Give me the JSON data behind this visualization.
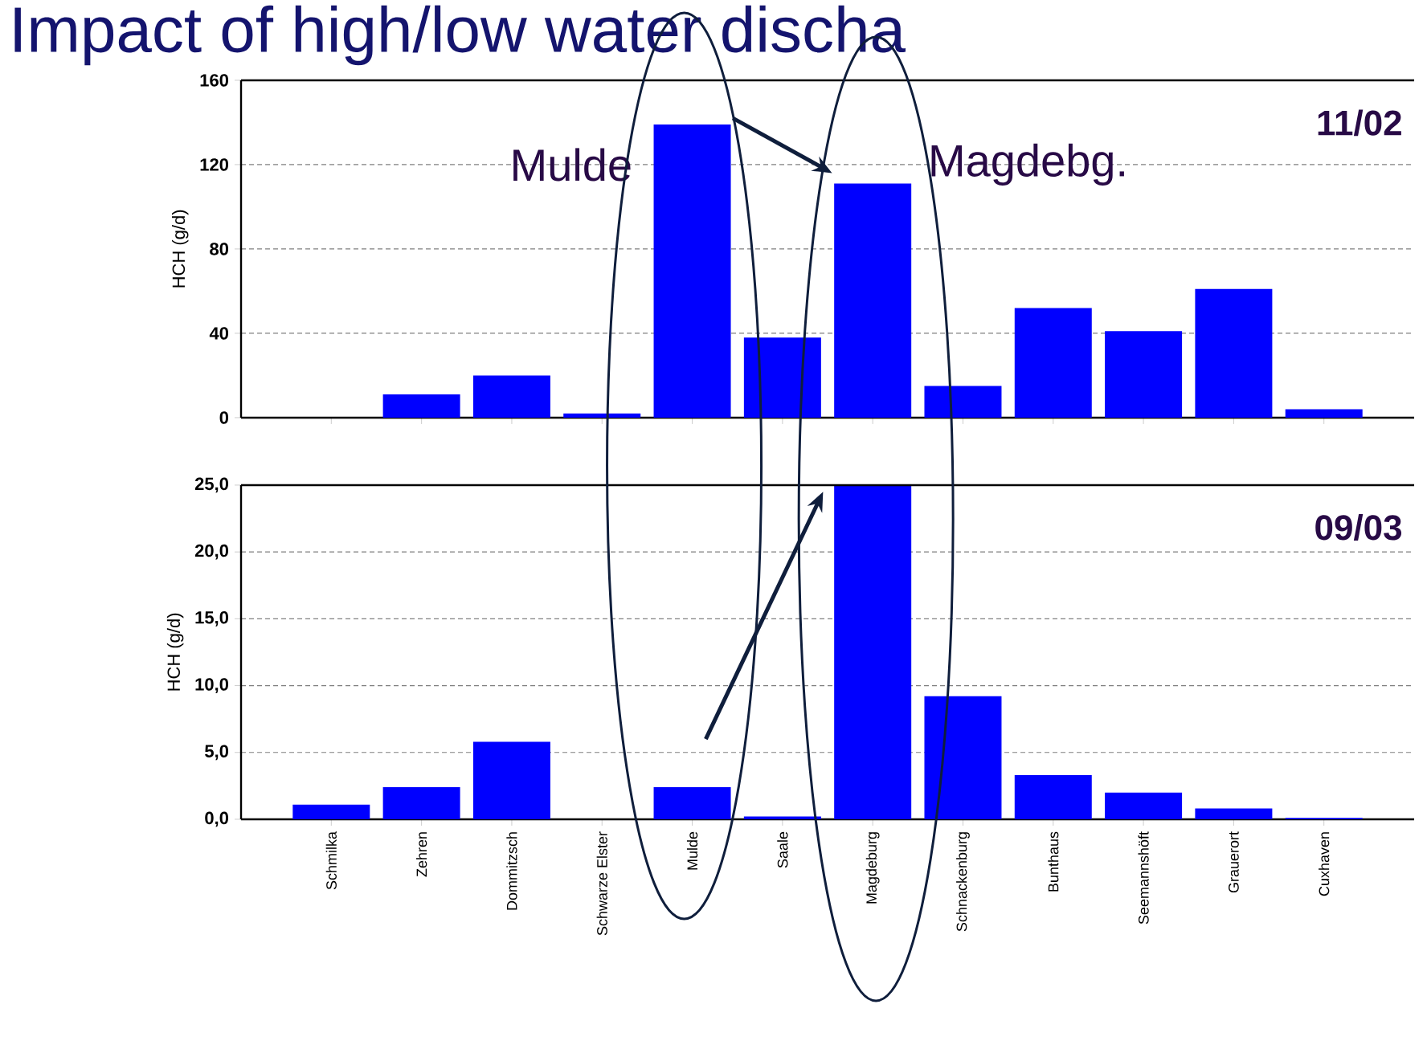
{
  "chart_data": [
    {
      "type": "bar",
      "title": "Impact of high/low water discha",
      "subtitle": "11/02",
      "ylabel": "HCH (g/d)",
      "color": "#0000ff",
      "grid": "y",
      "tick_labels": "y",
      "values": [
        0,
        11,
        20,
        2,
        139,
        38,
        111,
        15,
        52,
        41,
        61,
        4
      ],
      "ylim": [
        0,
        160
      ],
      "yticks": [
        0,
        40,
        80,
        120,
        160
      ],
      "annotations": [
        "Mulde",
        "Magdebg."
      ]
    },
    {
      "type": "bar",
      "subtitle": "09/03",
      "ylabel": "HCH (g/d)",
      "color": "#0000ff",
      "grid": "y",
      "categories": [
        "Schmilka",
        "Zehren",
        "Dommitzsch",
        "Schwarze Elster",
        "Mulde",
        "Saale",
        "Magdeburg",
        "Schnackenburg",
        "Bunthaus",
        "Seemannshöft",
        "Grauerort",
        "Cuxhaven"
      ],
      "values": [
        1.1,
        2.4,
        5.8,
        0,
        2.4,
        0.2,
        25,
        9.2,
        3.3,
        2.0,
        0.8,
        0.1
      ],
      "ylim": [
        0,
        25
      ],
      "yticks": [
        {
          "value": 0,
          "label": "0,0"
        },
        {
          "value": 5,
          "label": "5,0"
        },
        {
          "value": 10,
          "label": "10,0"
        },
        {
          "value": 15,
          "label": "15,0"
        },
        {
          "value": 20,
          "label": "20,0"
        },
        {
          "value": 25,
          "label": "25,0"
        }
      ]
    }
  ]
}
